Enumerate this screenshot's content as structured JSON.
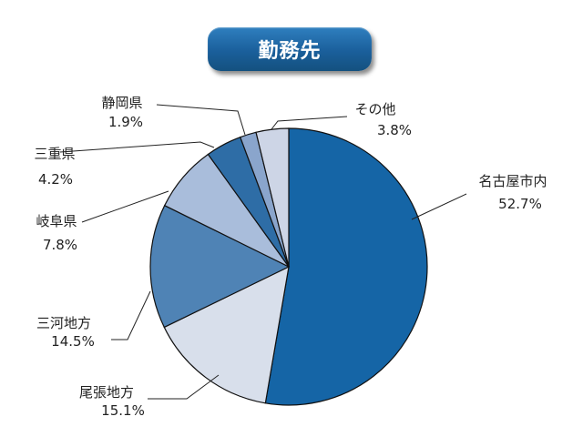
{
  "chart_data": {
    "type": "pie",
    "title": "勤務先",
    "start": "12 o'clock, clockwise",
    "slices": [
      {
        "name": "名古屋市内",
        "value": 52.7,
        "label": "52.7%",
        "color": "#1565a6"
      },
      {
        "name": "尾張地方",
        "value": 15.1,
        "label": "15.1%",
        "color": "#d8dfeb"
      },
      {
        "name": "三河地方",
        "value": 14.5,
        "label": "14.5%",
        "color": "#4f83b5"
      },
      {
        "name": "岐阜県",
        "value": 7.8,
        "label": "7.8%",
        "color": "#a9bddb"
      },
      {
        "name": "三重県",
        "value": 4.2,
        "label": "4.2%",
        "color": "#2e6da6"
      },
      {
        "name": "静岡県",
        "value": 1.9,
        "label": "1.9%",
        "color": "#8aa5cc"
      },
      {
        "name": "その他",
        "value": 3.8,
        "label": "3.8%",
        "color": "#cdd5e6"
      }
    ]
  }
}
